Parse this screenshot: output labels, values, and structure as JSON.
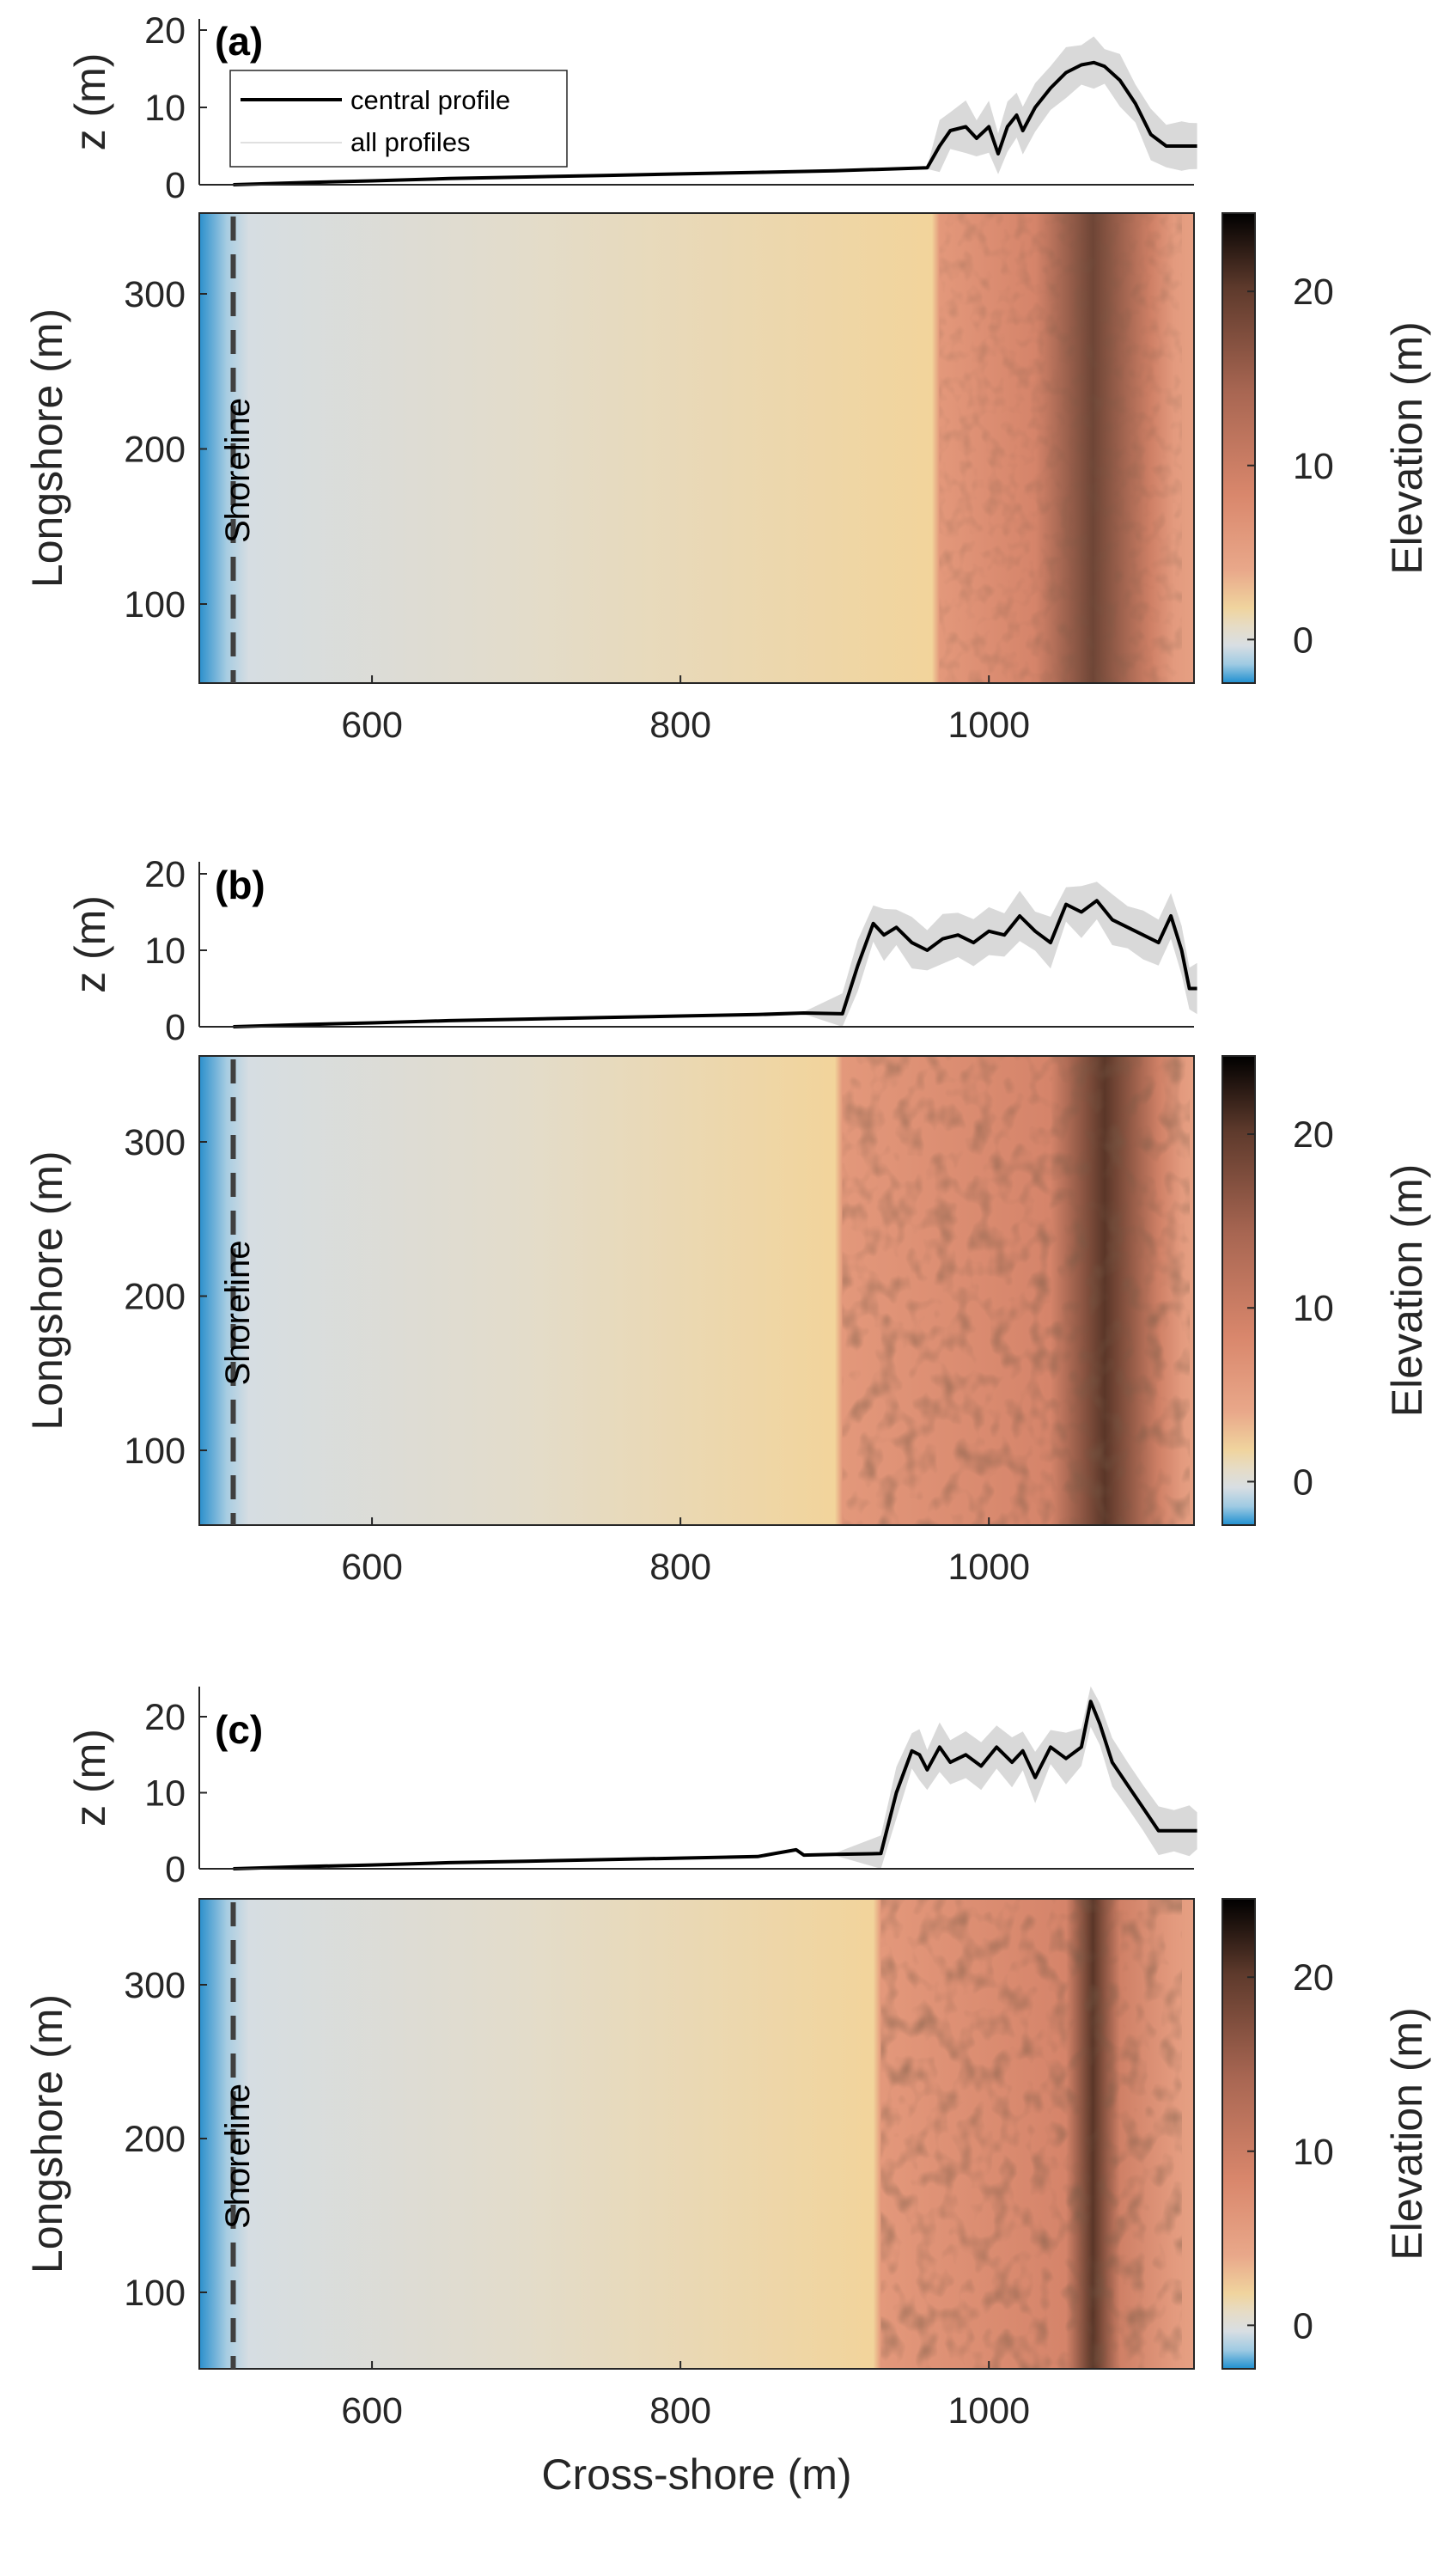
{
  "colors": {
    "profile_line": "#000000",
    "envelope": "#d9d9d9",
    "shoreline_line": "#404040",
    "colormap": [
      "#1f8fd0",
      "#9fcbe3",
      "#d8dee3",
      "#e6dcc6",
      "#f0d49e",
      "#e9a88a",
      "#d9876c",
      "#a86652",
      "#5e3a2c",
      "#000000"
    ]
  },
  "chart_data": [
    {
      "panel": "(a)",
      "type": "line",
      "ylabel": "z (m)",
      "ylim": [
        0,
        20
      ],
      "yticks": [
        "0",
        "10",
        "20"
      ],
      "legend": [
        "central profile",
        "all profiles"
      ],
      "legend_position": "top-left",
      "series": [
        {
          "name": "central profile",
          "x": [
            510,
            560,
            600,
            650,
            700,
            750,
            800,
            850,
            900,
            960,
            968,
            975,
            985,
            992,
            1000,
            1006,
            1012,
            1018,
            1022,
            1030,
            1040,
            1050,
            1060,
            1068,
            1075,
            1085,
            1095,
            1105,
            1115,
            1125,
            1130,
            1135
          ],
          "values": [
            0,
            0.3,
            0.5,
            0.8,
            1.0,
            1.2,
            1.4,
            1.6,
            1.8,
            2.2,
            5,
            7,
            7.5,
            6,
            7.5,
            4,
            7.5,
            9,
            7,
            10,
            12.5,
            14.5,
            15.5,
            15.8,
            15.3,
            13.5,
            10.5,
            6.5,
            5,
            5,
            5,
            5
          ]
        }
      ]
    },
    {
      "type": "heatmap",
      "xlabel": "",
      "ylabel": "Longshore (m)",
      "xticks": [
        "600",
        "800",
        "1000"
      ],
      "yticks": [
        "100",
        "200",
        "300"
      ],
      "annotation": "Shoreline",
      "colorbar_label": "Elevation (m)",
      "colorbar_ticks": [
        "0",
        "10",
        "20"
      ]
    },
    {
      "panel": "(b)",
      "type": "line",
      "ylabel": "z (m)",
      "yticks": [
        "0",
        "10",
        "20"
      ],
      "series": [
        {
          "name": "central profile",
          "x": [
            510,
            560,
            600,
            650,
            700,
            750,
            800,
            850,
            880,
            905,
            915,
            925,
            932,
            940,
            950,
            960,
            970,
            980,
            990,
            1000,
            1010,
            1020,
            1030,
            1040,
            1050,
            1060,
            1070,
            1080,
            1090,
            1100,
            1110,
            1118,
            1125,
            1130,
            1135
          ],
          "values": [
            0,
            0.3,
            0.5,
            0.8,
            1.0,
            1.2,
            1.4,
            1.6,
            1.8,
            1.7,
            8,
            13.5,
            12,
            13,
            11,
            10,
            11.5,
            12,
            11,
            12.5,
            12,
            14.5,
            12.5,
            11,
            16,
            15,
            16.5,
            14,
            13,
            12,
            11,
            14.5,
            10,
            5,
            5
          ]
        }
      ]
    },
    {
      "type": "heatmap",
      "xlabel": "",
      "ylabel": "Longshore (m)",
      "xticks": [
        "600",
        "800",
        "1000"
      ],
      "yticks": [
        "100",
        "200",
        "300"
      ],
      "annotation": "Shoreline",
      "colorbar_label": "Elevation (m)",
      "colorbar_ticks": [
        "0",
        "10",
        "20"
      ]
    },
    {
      "panel": "(c)",
      "type": "line",
      "ylabel": "z (m)",
      "yticks": [
        "0",
        "10",
        "20"
      ],
      "series": [
        {
          "name": "central profile",
          "x": [
            510,
            560,
            600,
            650,
            700,
            750,
            800,
            850,
            875,
            880,
            900,
            930,
            940,
            950,
            955,
            960,
            968,
            975,
            985,
            995,
            1005,
            1015,
            1022,
            1030,
            1040,
            1050,
            1060,
            1066,
            1072,
            1080,
            1090,
            1100,
            1110,
            1120,
            1130,
            1135
          ],
          "values": [
            0,
            0.3,
            0.5,
            0.8,
            1.0,
            1.2,
            1.4,
            1.6,
            2.5,
            1.8,
            1.9,
            2,
            10,
            15.5,
            15,
            13,
            16,
            14,
            15,
            13.5,
            16,
            14,
            15.5,
            12,
            16,
            14.5,
            16,
            22,
            19,
            14,
            11,
            8,
            5,
            5,
            5,
            5
          ]
        }
      ]
    },
    {
      "type": "heatmap",
      "xlabel": "Cross-shore (m)",
      "ylabel": "Longshore (m)",
      "xticks": [
        "600",
        "800",
        "1000"
      ],
      "yticks": [
        "100",
        "200",
        "300"
      ],
      "annotation": "Shoreline",
      "colorbar_label": "Elevation (m)",
      "colorbar_ticks": [
        "0",
        "10",
        "20"
      ]
    }
  ]
}
